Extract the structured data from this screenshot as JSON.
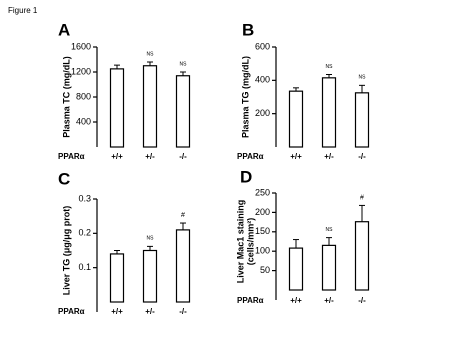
{
  "figure": "Figure 1",
  "chart_data": [
    {
      "type": "bar",
      "panel": "A",
      "y_label": [
        "Plasma TC (mg/dL)"
      ],
      "x_label": "PPARα",
      "categories": [
        "+/+",
        "+/-",
        "-/-"
      ],
      "values": [
        1250,
        1300,
        1140
      ],
      "errors": [
        60,
        60,
        60
      ],
      "annotations": [
        null,
        "NS",
        "NS"
      ],
      "color": "#ffffff",
      "ylim": [
        0,
        1600
      ],
      "yticks": [
        400,
        800,
        1200,
        1600
      ]
    },
    {
      "type": "bar",
      "panel": "B",
      "y_label": [
        "Plasma TG (mg/dL)"
      ],
      "x_label": "PPARα",
      "categories": [
        "+/+",
        "+/-",
        "-/-"
      ],
      "values": [
        335,
        415,
        325
      ],
      "errors": [
        20,
        20,
        45
      ],
      "annotations": [
        null,
        "NS",
        "NS"
      ],
      "color": "#ffffff",
      "ylim": [
        0,
        600
      ],
      "yticks": [
        200,
        400,
        600
      ]
    },
    {
      "type": "bar",
      "panel": "C",
      "y_label": [
        "Liver TG (μg/μg prot)"
      ],
      "x_label": "PPARα",
      "categories": [
        "+/+",
        "+/-",
        "-/-"
      ],
      "values": [
        0.14,
        0.15,
        0.21
      ],
      "errors": [
        0.01,
        0.012,
        0.02
      ],
      "annotations": [
        null,
        "NS",
        "#"
      ],
      "color": "#ffffff",
      "ylim": [
        0,
        0.3
      ],
      "yticks": [
        0.1,
        0.2,
        0.3
      ]
    },
    {
      "type": "bar",
      "panel": "D",
      "y_label": [
        "Liver Mac1 staining",
        "(cells/mm²)"
      ],
      "x_label": "PPARα",
      "categories": [
        "+/+",
        "+/-",
        "-/-"
      ],
      "values": [
        108,
        115,
        176
      ],
      "errors": [
        22,
        20,
        42
      ],
      "annotations": [
        null,
        "NS",
        "#"
      ],
      "color": "#ffffff",
      "ylim": [
        0,
        250
      ],
      "yticks": [
        50,
        100,
        150,
        200,
        250
      ]
    }
  ]
}
